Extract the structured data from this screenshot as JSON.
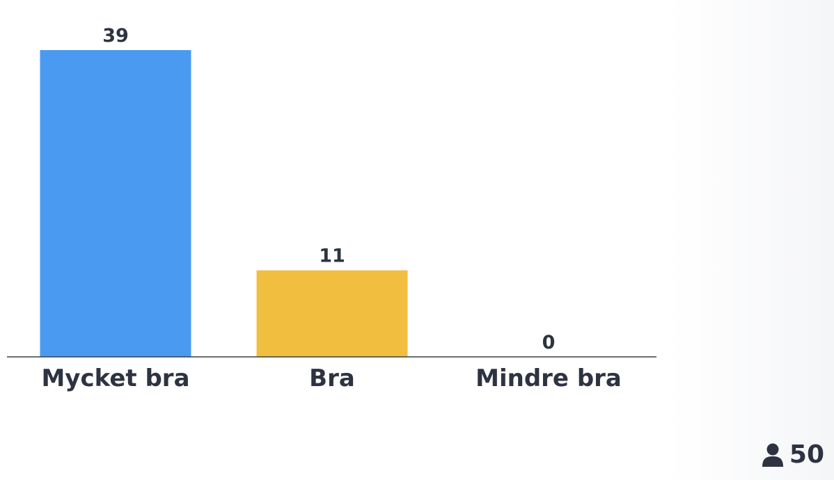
{
  "chart_data": {
    "type": "bar",
    "categories": [
      "Mycket bra",
      "Bra",
      "Mindre bra"
    ],
    "values": [
      39,
      11,
      0
    ],
    "colors": [
      "#4b9af2",
      "#f2be40",
      "#e8525d"
    ],
    "title": "",
    "xlabel": "",
    "ylabel": "",
    "ylim": [
      0,
      39
    ],
    "grid": false,
    "legend": "none"
  },
  "respondents": {
    "icon": "person-icon",
    "count": "50"
  }
}
